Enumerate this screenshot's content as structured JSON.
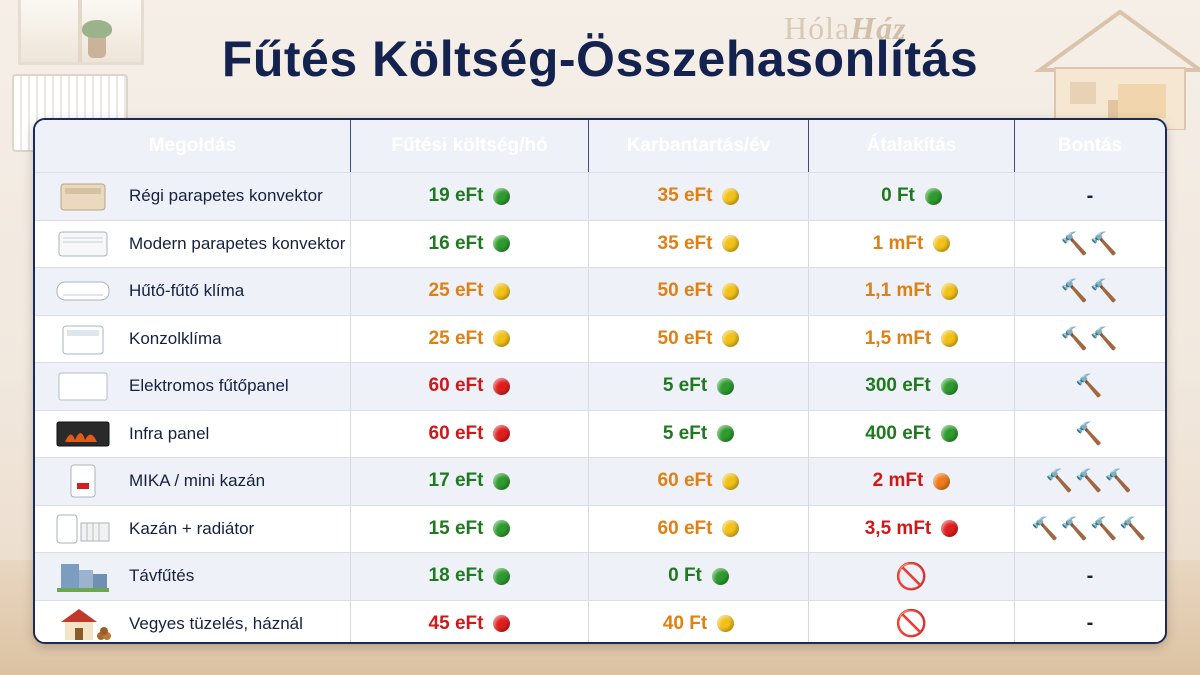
{
  "logo": {
    "text1": "Hóla",
    "text2": "Ház"
  },
  "title": "Fűtés Költség-Összehasonlítás",
  "columns": [
    "Megoldás",
    "Fűtési költség/hó",
    "Karbantartás/év",
    "Átalakítás",
    "Bontás"
  ],
  "colors": {
    "green": "#2e9b2e",
    "yellow": "#f2c118",
    "orange": "#f07a1a",
    "red": "#e01e1e",
    "header": "#1a2a5a"
  },
  "rows": [
    {
      "name": "Régi parapetes konvektor",
      "icon": "old-convector-icon",
      "cost": "19 eFt",
      "cost_dot": "green",
      "maint": "35 eFt",
      "maint_dot": "yellow",
      "conv": "0 Ft",
      "conv_dot": "green",
      "demo": "-"
    },
    {
      "name": "Modern parapetes konvektor",
      "icon": "modern-convector-icon",
      "cost": "16 eFt",
      "cost_dot": "green",
      "maint": "35 eFt",
      "maint_dot": "yellow",
      "conv": "1 mFt",
      "conv_dot": "yellow",
      "demo": "🔨🔨"
    },
    {
      "name": "Hűtő-fűtő klíma",
      "icon": "air-conditioner-icon",
      "cost": "25 eFt",
      "cost_dot": "yellow",
      "maint": "50 eFt",
      "maint_dot": "yellow",
      "conv": "1,1 mFt",
      "conv_dot": "yellow",
      "demo": "🔨🔨"
    },
    {
      "name": "Konzolklíma",
      "icon": "console-ac-icon",
      "cost": "25 eFt",
      "cost_dot": "yellow",
      "maint": "50 eFt",
      "maint_dot": "yellow",
      "conv": "1,5 mFt",
      "conv_dot": "yellow",
      "demo": "🔨🔨"
    },
    {
      "name": "Elektromos fűtőpanel",
      "icon": "electric-panel-icon",
      "cost": "60 eFt",
      "cost_dot": "red",
      "maint": "5 eFt",
      "maint_dot": "green",
      "conv": "300 eFt",
      "conv_dot": "green",
      "demo": "🔨"
    },
    {
      "name": "Infra panel",
      "icon": "infra-panel-icon",
      "cost": "60 eFt",
      "cost_dot": "red",
      "maint": "5 eFt",
      "maint_dot": "green",
      "conv": "400 eFt",
      "conv_dot": "green",
      "demo": "🔨"
    },
    {
      "name": "MIKA / mini kazán",
      "icon": "mini-boiler-icon",
      "cost": "17 eFt",
      "cost_dot": "green",
      "maint": "60 eFt",
      "maint_dot": "yellow",
      "conv": "2 mFt",
      "conv_dot": "orange",
      "demo": "🔨🔨🔨"
    },
    {
      "name": "Kazán + radiátor",
      "icon": "boiler-radiator-icon",
      "cost": "15 eFt",
      "cost_dot": "green",
      "maint": "60 eFt",
      "maint_dot": "yellow",
      "conv": "3,5 mFt",
      "conv_dot": "red",
      "demo": "🔨🔨🔨🔨"
    },
    {
      "name": "Távfűtés",
      "icon": "district-heating-icon",
      "cost": "18 eFt",
      "cost_dot": "green",
      "maint": "0 Ft",
      "maint_dot": "green",
      "conv": "🚫",
      "conv_dot": "",
      "demo": "-"
    },
    {
      "name": "Vegyes tüzelés, háznál",
      "icon": "house-wood-icon",
      "cost": "45 eFt",
      "cost_dot": "red",
      "maint": "40 Ft",
      "maint_dot": "yellow",
      "conv": "🚫",
      "conv_dot": "",
      "demo": "-"
    }
  ]
}
